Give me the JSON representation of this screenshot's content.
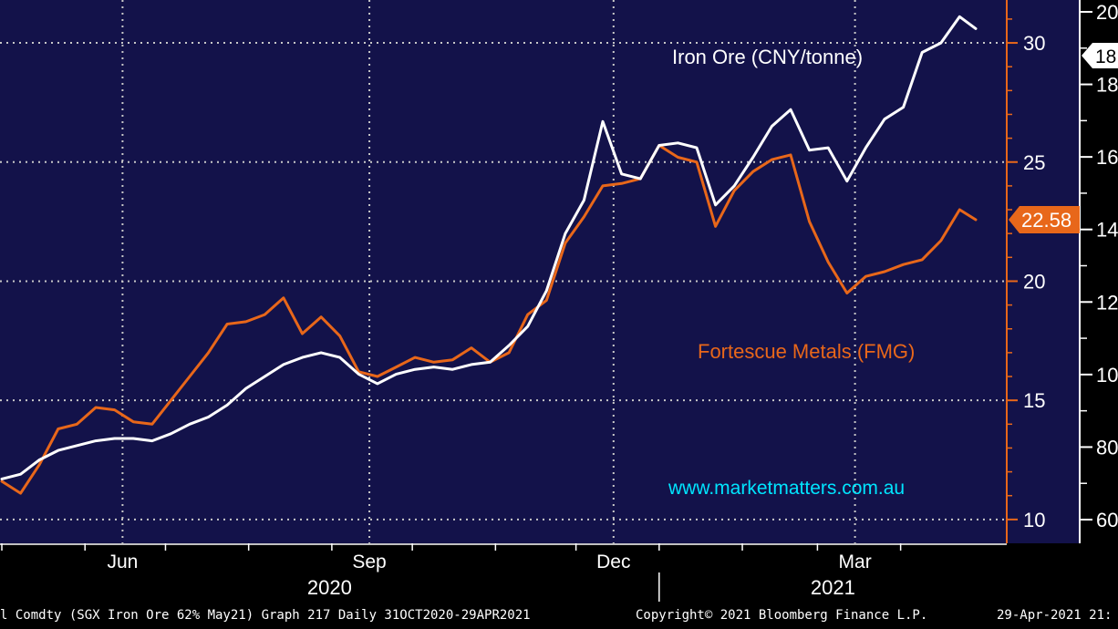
{
  "chart_data": {
    "type": "line",
    "title": "",
    "xlabel": "",
    "grid": true,
    "x_ticks": [
      {
        "label": "Jun",
        "date": "2020-06-15"
      },
      {
        "label": "Sep",
        "date": "2020-09-15"
      },
      {
        "label": "Dec",
        "date": "2020-12-15"
      },
      {
        "label": "Mar",
        "date": "2021-03-15"
      }
    ],
    "x_years": [
      {
        "label": "2020"
      },
      {
        "label": "2021"
      }
    ],
    "y_left_axis": {
      "ticks": [
        10,
        15,
        20,
        25,
        30
      ],
      "ylim": [
        9.0,
        31.8
      ],
      "color": "#e8671a"
    },
    "y_right_axis": {
      "ticks": [
        "60",
        "80",
        "10",
        "12",
        "14",
        "16",
        "18",
        "20"
      ],
      "color": "#ffffff"
    },
    "series": [
      {
        "name": "Iron Ore (CNY/tonne)",
        "axis": "left",
        "color": "#ffffff",
        "last_value": "18",
        "points": [
          [
            "2020-05-01",
            11.7
          ],
          [
            "2020-05-08",
            11.9
          ],
          [
            "2020-05-15",
            12.5
          ],
          [
            "2020-05-22",
            12.9
          ],
          [
            "2020-05-29",
            13.1
          ],
          [
            "2020-06-05",
            13.3
          ],
          [
            "2020-06-12",
            13.4
          ],
          [
            "2020-06-19",
            13.4
          ],
          [
            "2020-06-26",
            13.3
          ],
          [
            "2020-07-03",
            13.6
          ],
          [
            "2020-07-10",
            14.0
          ],
          [
            "2020-07-17",
            14.3
          ],
          [
            "2020-07-24",
            14.8
          ],
          [
            "2020-07-31",
            15.5
          ],
          [
            "2020-08-07",
            16.0
          ],
          [
            "2020-08-14",
            16.5
          ],
          [
            "2020-08-21",
            16.8
          ],
          [
            "2020-08-28",
            17.0
          ],
          [
            "2020-09-04",
            16.8
          ],
          [
            "2020-09-11",
            16.1
          ],
          [
            "2020-09-18",
            15.7
          ],
          [
            "2020-09-25",
            16.1
          ],
          [
            "2020-10-02",
            16.3
          ],
          [
            "2020-10-09",
            16.4
          ],
          [
            "2020-10-16",
            16.3
          ],
          [
            "2020-10-23",
            16.5
          ],
          [
            "2020-10-30",
            16.6
          ],
          [
            "2020-11-06",
            17.3
          ],
          [
            "2020-11-13",
            18.1
          ],
          [
            "2020-11-20",
            19.6
          ],
          [
            "2020-11-27",
            22.0
          ],
          [
            "2020-12-04",
            23.4
          ],
          [
            "2020-12-11",
            26.7
          ],
          [
            "2020-12-18",
            24.5
          ],
          [
            "2020-12-25",
            24.3
          ],
          [
            "2021-01-01",
            25.7
          ],
          [
            "2021-01-08",
            25.8
          ],
          [
            "2021-01-15",
            25.6
          ],
          [
            "2021-01-22",
            23.2
          ],
          [
            "2021-01-29",
            24.0
          ],
          [
            "2021-02-05",
            25.2
          ],
          [
            "2021-02-12",
            26.5
          ],
          [
            "2021-02-19",
            27.2
          ],
          [
            "2021-02-26",
            25.5
          ],
          [
            "2021-03-05",
            25.6
          ],
          [
            "2021-03-12",
            24.2
          ],
          [
            "2021-03-19",
            25.6
          ],
          [
            "2021-03-26",
            26.8
          ],
          [
            "2021-04-02",
            27.3
          ],
          [
            "2021-04-09",
            29.6
          ],
          [
            "2021-04-16",
            30.0
          ],
          [
            "2021-04-23",
            31.1
          ],
          [
            "2021-04-29",
            30.6
          ]
        ]
      },
      {
        "name": "Fortescue Metals (FMG)",
        "axis": "left",
        "color": "#e8671a",
        "last_value": "22.58",
        "points": [
          [
            "2020-05-01",
            11.6
          ],
          [
            "2020-05-08",
            11.1
          ],
          [
            "2020-05-15",
            12.3
          ],
          [
            "2020-05-22",
            13.8
          ],
          [
            "2020-05-29",
            14.0
          ],
          [
            "2020-06-05",
            14.7
          ],
          [
            "2020-06-12",
            14.6
          ],
          [
            "2020-06-19",
            14.1
          ],
          [
            "2020-06-26",
            14.0
          ],
          [
            "2020-07-03",
            15.0
          ],
          [
            "2020-07-10",
            16.0
          ],
          [
            "2020-07-17",
            17.0
          ],
          [
            "2020-07-24",
            18.2
          ],
          [
            "2020-07-31",
            18.3
          ],
          [
            "2020-08-07",
            18.6
          ],
          [
            "2020-08-14",
            19.3
          ],
          [
            "2020-08-21",
            17.8
          ],
          [
            "2020-08-28",
            18.5
          ],
          [
            "2020-09-04",
            17.7
          ],
          [
            "2020-09-11",
            16.2
          ],
          [
            "2020-09-18",
            16.0
          ],
          [
            "2020-09-25",
            16.4
          ],
          [
            "2020-10-02",
            16.8
          ],
          [
            "2020-10-09",
            16.6
          ],
          [
            "2020-10-16",
            16.7
          ],
          [
            "2020-10-23",
            17.2
          ],
          [
            "2020-10-30",
            16.6
          ],
          [
            "2020-11-06",
            17.0
          ],
          [
            "2020-11-13",
            18.6
          ],
          [
            "2020-11-20",
            19.2
          ],
          [
            "2020-11-27",
            21.6
          ],
          [
            "2020-12-04",
            22.7
          ],
          [
            "2020-12-11",
            24.0
          ],
          [
            "2020-12-18",
            24.1
          ],
          [
            "2020-12-25",
            24.3
          ],
          [
            "2021-01-01",
            25.7
          ],
          [
            "2021-01-08",
            25.2
          ],
          [
            "2021-01-15",
            25.0
          ],
          [
            "2021-01-22",
            22.3
          ],
          [
            "2021-01-29",
            23.8
          ],
          [
            "2021-02-05",
            24.6
          ],
          [
            "2021-02-12",
            25.1
          ],
          [
            "2021-02-19",
            25.3
          ],
          [
            "2021-02-26",
            22.5
          ],
          [
            "2021-03-05",
            20.8
          ],
          [
            "2021-03-12",
            19.5
          ],
          [
            "2021-03-19",
            20.2
          ],
          [
            "2021-03-26",
            20.4
          ],
          [
            "2021-04-02",
            20.7
          ],
          [
            "2021-04-09",
            20.9
          ],
          [
            "2021-04-16",
            21.7
          ],
          [
            "2021-04-23",
            23.0
          ],
          [
            "2021-04-29",
            22.58
          ]
        ]
      }
    ],
    "annotations": [
      {
        "text": "Iron Ore (CNY/tonne)",
        "color": "#ffffff"
      },
      {
        "text": "Fortescue Metals (FMG)",
        "color": "#e8671a"
      },
      {
        "text": "www.marketmatters.com.au",
        "color": "#00e5ff"
      }
    ]
  },
  "footer": {
    "left": "l Comdty (SGX Iron Ore 62%  May21) Graph 217  Daily 31OCT2020-29APR2021",
    "copyright": "Copyright© 2021 Bloomberg Finance L.P.",
    "date": "29-Apr-2021 21:"
  },
  "colors": {
    "background": "#13124a",
    "grid": "#c8c8c8",
    "axis_bg": "#000000"
  }
}
